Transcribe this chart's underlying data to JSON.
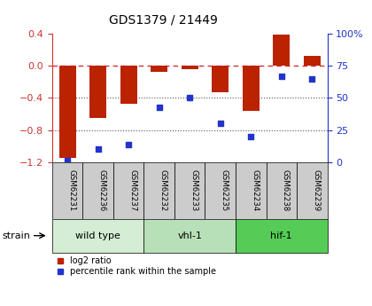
{
  "title": "GDS1379 / 21449",
  "samples": [
    "GSM62231",
    "GSM62236",
    "GSM62237",
    "GSM62232",
    "GSM62233",
    "GSM62235",
    "GSM62234",
    "GSM62238",
    "GSM62239"
  ],
  "log2_ratio": [
    -1.15,
    -0.65,
    -0.47,
    -0.07,
    -0.04,
    -0.33,
    -0.56,
    0.39,
    0.12
  ],
  "percentile_rank": [
    1,
    10,
    14,
    43,
    50,
    30,
    20,
    67,
    65
  ],
  "groups": [
    {
      "label": "wild type",
      "start": 0,
      "end": 3,
      "color": "#d4edd4"
    },
    {
      "label": "vhl-1",
      "start": 3,
      "end": 6,
      "color": "#b8e0b8"
    },
    {
      "label": "hif-1",
      "start": 6,
      "end": 9,
      "color": "#55cc55"
    }
  ],
  "strain_label": "strain",
  "ylim_left": [
    -1.2,
    0.4
  ],
  "ylim_right": [
    0,
    100
  ],
  "yticks_left": [
    -1.2,
    -0.8,
    -0.4,
    0.0,
    0.4
  ],
  "yticks_right": [
    0,
    25,
    50,
    75,
    100
  ],
  "ytick_labels_right": [
    "0",
    "25",
    "50",
    "75",
    "100%"
  ],
  "bar_color": "#bb2200",
  "dot_color": "#2233cc",
  "zero_line_color": "#cc3333",
  "grid_color": "#555555",
  "sample_box_color": "#cccccc",
  "legend_red_label": "log2 ratio",
  "legend_blue_label": "percentile rank within the sample"
}
